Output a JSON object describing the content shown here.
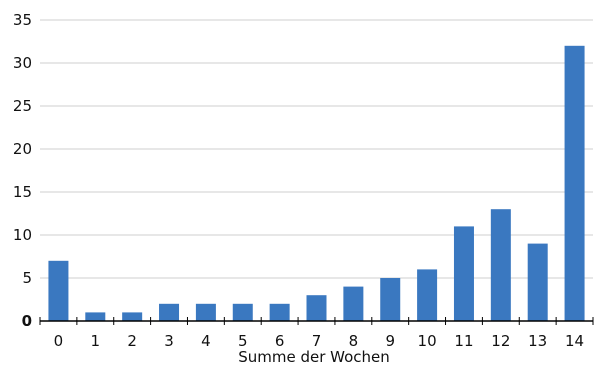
{
  "chart_data": {
    "type": "bar",
    "categories": [
      "0",
      "1",
      "2",
      "3",
      "4",
      "5",
      "6",
      "7",
      "8",
      "9",
      "10",
      "11",
      "12",
      "13",
      "14"
    ],
    "values": [
      7,
      1,
      1,
      2,
      2,
      2,
      2,
      3,
      4,
      5,
      6,
      11,
      13,
      9,
      32
    ],
    "xlabel": "Summe der Wochen",
    "ylabel": "",
    "ylim": [
      0,
      35
    ],
    "yticks": [
      0,
      5,
      10,
      15,
      20,
      25,
      30,
      35
    ],
    "grid": "horizontal",
    "colors": {
      "bar": "#3a78c0",
      "grid": "#cfcfcf",
      "axis": "#000000"
    }
  }
}
